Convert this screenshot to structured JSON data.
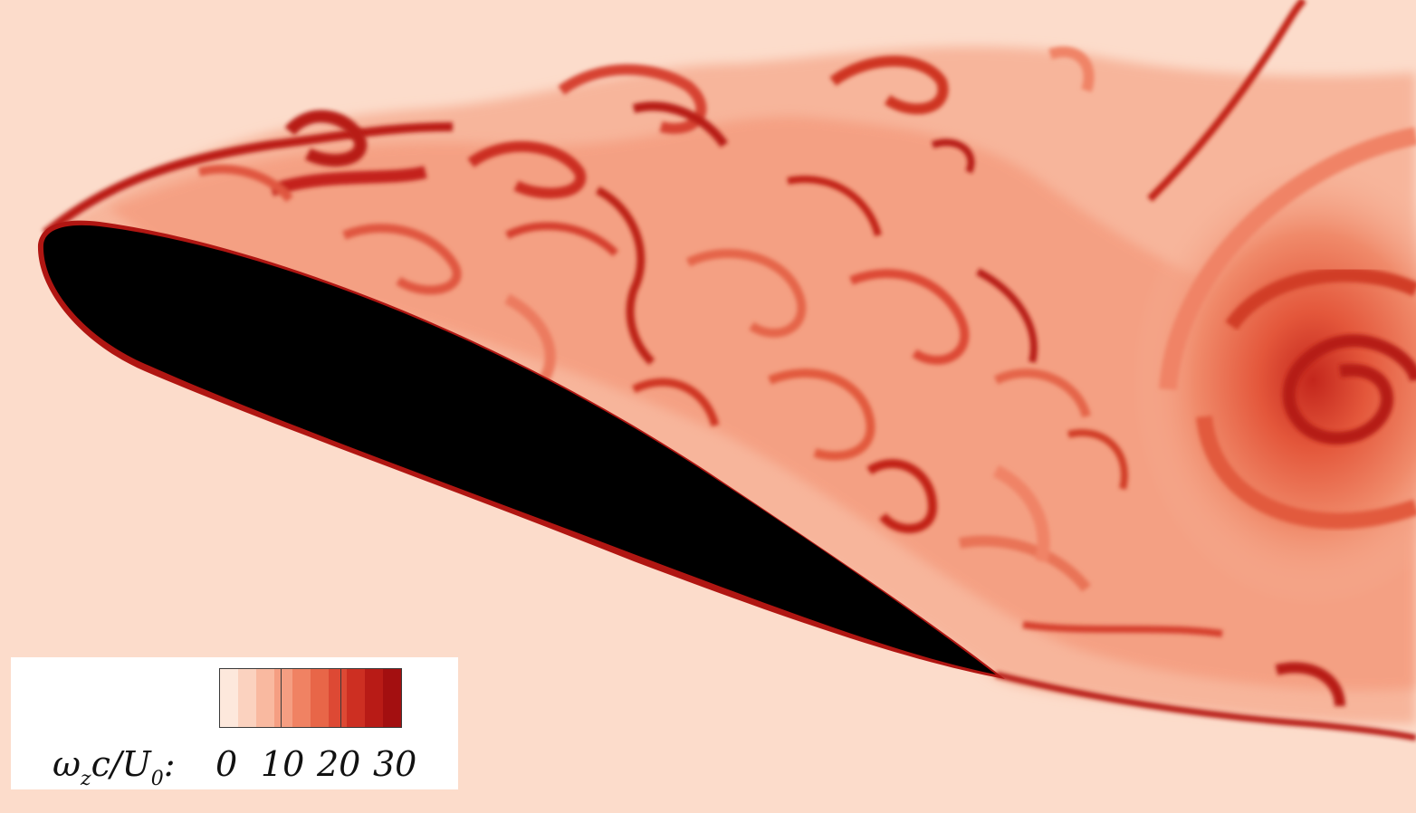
{
  "colorbar": {
    "label_parts": {
      "omega": "ω",
      "omega_sub": "z",
      "middle": "c/U",
      "u_sub": "0",
      "suffix": ":"
    },
    "ticks": [
      "0",
      "10",
      "20",
      "30"
    ],
    "range": [
      0,
      30
    ],
    "colors": [
      "#fde8dc",
      "#fbd2bf",
      "#f9b9a0",
      "#f59e82",
      "#f08263",
      "#e86648",
      "#dd4934",
      "#cd2f22",
      "#b81b16",
      "#a30f10"
    ]
  },
  "palette": {
    "background": "#fcdccb",
    "airfoil": "#000000",
    "low_vorticity": "#fbd5c2",
    "mid_vorticity": "#ef7d5e",
    "high_vorticity": "#c01e18"
  }
}
